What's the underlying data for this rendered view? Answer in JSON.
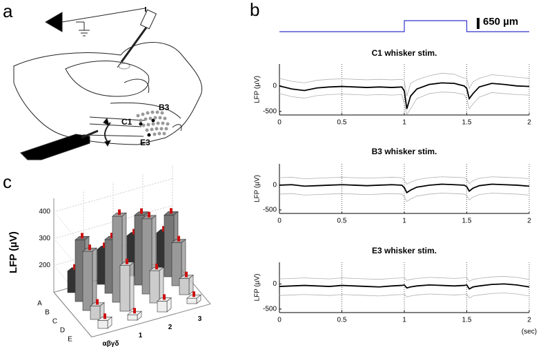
{
  "panel_labels": [
    "a",
    "b",
    "c"
  ],
  "panel_a": {
    "whisker_labels": [
      "C1",
      "B3",
      "E3"
    ]
  },
  "panel_b": {
    "stimulus": {
      "x": [
        0,
        1,
        1,
        1.5,
        1.5,
        2
      ],
      "values": [
        0,
        0,
        650,
        650,
        0,
        0
      ],
      "color": "#3333cc",
      "xlim": [
        0,
        2
      ],
      "ylim": [
        0,
        650
      ]
    },
    "scale_bar": {
      "value": 650,
      "label": "650 µm"
    }
  },
  "chart_data": [
    {
      "type": "line",
      "title": "C1 whisker stim.",
      "ylabel": "LFP (µV)",
      "xlim": [
        0,
        2
      ],
      "ylim": [
        -570,
        430
      ],
      "xticks": [
        0,
        0.5,
        1,
        1.5,
        2
      ],
      "yticks": [
        -500,
        0
      ],
      "grid": true,
      "x": [
        0,
        0.1,
        0.2,
        0.3,
        0.4,
        0.5,
        0.6,
        0.7,
        0.8,
        0.9,
        0.98,
        1.0,
        1.02,
        1.05,
        1.1,
        1.2,
        1.3,
        1.4,
        1.48,
        1.5,
        1.52,
        1.55,
        1.6,
        1.7,
        1.8,
        1.9,
        2
      ],
      "series": [
        {
          "color": "#b0b0b0",
          "values": [
            150,
            90,
            60,
            110,
            130,
            140,
            130,
            120,
            130,
            120,
            130,
            100,
            -200,
            50,
            120,
            200,
            250,
            230,
            150,
            150,
            -50,
            80,
            150,
            220,
            200,
            170,
            150
          ]
        },
        {
          "color": "#b0b0b0",
          "values": [
            -150,
            -210,
            -240,
            -190,
            -170,
            -160,
            -170,
            -180,
            -170,
            -180,
            -170,
            -350,
            -560,
            -450,
            -250,
            -150,
            -120,
            -130,
            -170,
            -250,
            -450,
            -350,
            -220,
            -130,
            -150,
            -170,
            -180
          ]
        },
        {
          "color": "#000000",
          "values": [
            0,
            -60,
            -90,
            -40,
            -20,
            -10,
            -20,
            -30,
            -20,
            -30,
            -20,
            -100,
            -450,
            -200,
            -60,
            30,
            60,
            50,
            0,
            -50,
            -250,
            -150,
            -20,
            50,
            30,
            0,
            -10
          ]
        }
      ]
    },
    {
      "type": "line",
      "title": "B3 whisker stim.",
      "ylabel": "LFP (µV)",
      "xlim": [
        0,
        2
      ],
      "ylim": [
        -570,
        430
      ],
      "xticks": [
        0,
        0.5,
        1,
        1.5,
        2
      ],
      "yticks": [
        -500,
        0
      ],
      "grid": true,
      "x": [
        0,
        0.1,
        0.2,
        0.3,
        0.4,
        0.5,
        0.6,
        0.7,
        0.8,
        0.9,
        0.98,
        1.0,
        1.02,
        1.05,
        1.1,
        1.2,
        1.3,
        1.4,
        1.48,
        1.5,
        1.52,
        1.55,
        1.6,
        1.7,
        1.8,
        1.9,
        2
      ],
      "series": [
        {
          "color": "#b0b0b0",
          "values": [
            150,
            160,
            130,
            140,
            150,
            160,
            150,
            140,
            150,
            160,
            150,
            100,
            20,
            60,
            110,
            150,
            170,
            160,
            150,
            120,
            30,
            90,
            140,
            170,
            160,
            150,
            130
          ]
        },
        {
          "color": "#b0b0b0",
          "values": [
            -180,
            -170,
            -200,
            -190,
            -180,
            -170,
            -180,
            -190,
            -180,
            -170,
            -180,
            -230,
            -330,
            -280,
            -220,
            -180,
            -160,
            -170,
            -180,
            -210,
            -300,
            -240,
            -190,
            -160,
            -170,
            -180,
            -200
          ]
        },
        {
          "color": "#000000",
          "values": [
            0,
            10,
            -20,
            -10,
            0,
            10,
            0,
            -10,
            0,
            10,
            0,
            -50,
            -150,
            -100,
            -40,
            0,
            20,
            10,
            0,
            -30,
            -120,
            -60,
            -10,
            20,
            10,
            0,
            -20
          ]
        }
      ]
    },
    {
      "type": "line",
      "title": "E3 whisker stim.",
      "ylabel": "LFP (µV)",
      "xlabel": "(sec)",
      "xlim": [
        0,
        2
      ],
      "ylim": [
        -570,
        430
      ],
      "xticks": [
        0,
        0.5,
        1,
        1.5,
        2
      ],
      "yticks": [
        -500,
        0
      ],
      "grid": true,
      "x": [
        0,
        0.1,
        0.2,
        0.3,
        0.4,
        0.5,
        0.6,
        0.7,
        0.8,
        0.9,
        0.98,
        1.0,
        1.02,
        1.05,
        1.1,
        1.2,
        1.3,
        1.4,
        1.48,
        1.5,
        1.52,
        1.55,
        1.6,
        1.7,
        1.8,
        1.9,
        2
      ],
      "series": [
        {
          "color": "#b0b0b0",
          "values": [
            100,
            110,
            120,
            110,
            100,
            120,
            110,
            100,
            90,
            110,
            120,
            130,
            70,
            90,
            110,
            130,
            120,
            110,
            120,
            130,
            50,
            90,
            110,
            140,
            150,
            130,
            90
          ]
        },
        {
          "color": "#b0b0b0",
          "values": [
            -230,
            -220,
            -210,
            -220,
            -230,
            -210,
            -220,
            -230,
            -240,
            -220,
            -210,
            -200,
            -260,
            -240,
            -220,
            -200,
            -210,
            -220,
            -210,
            -200,
            -280,
            -240,
            -220,
            -190,
            -180,
            -200,
            -240
          ]
        },
        {
          "color": "#000000",
          "values": [
            -50,
            -40,
            -30,
            -40,
            -50,
            -30,
            -40,
            -50,
            -60,
            -40,
            -30,
            -20,
            -80,
            -60,
            -40,
            -20,
            -30,
            -40,
            -30,
            -20,
            -100,
            -60,
            -40,
            -10,
            0,
            -20,
            -60
          ]
        }
      ]
    },
    {
      "type": "bar3d",
      "zlabel": "LFP (µV)",
      "zlim": [
        100,
        450
      ],
      "zticks": [
        200,
        300,
        400
      ],
      "rows": [
        "A",
        "B",
        "C",
        "D",
        "E"
      ],
      "columns": [
        "αβγδ",
        "1",
        "2",
        "3"
      ],
      "row_colors": [
        "#333333",
        "#777777",
        "#999999",
        "#cccccc",
        "#eeeeee"
      ],
      "marker_color": "#cc1111",
      "values": [
        [
          180,
          230,
          250,
          230
        ],
        [
          330,
          300,
          360,
          330
        ],
        [
          320,
          420,
          380,
          260
        ],
        [
          150,
          270,
          220,
          160
        ],
        [
          130,
          120,
          140,
          120
        ]
      ]
    }
  ]
}
